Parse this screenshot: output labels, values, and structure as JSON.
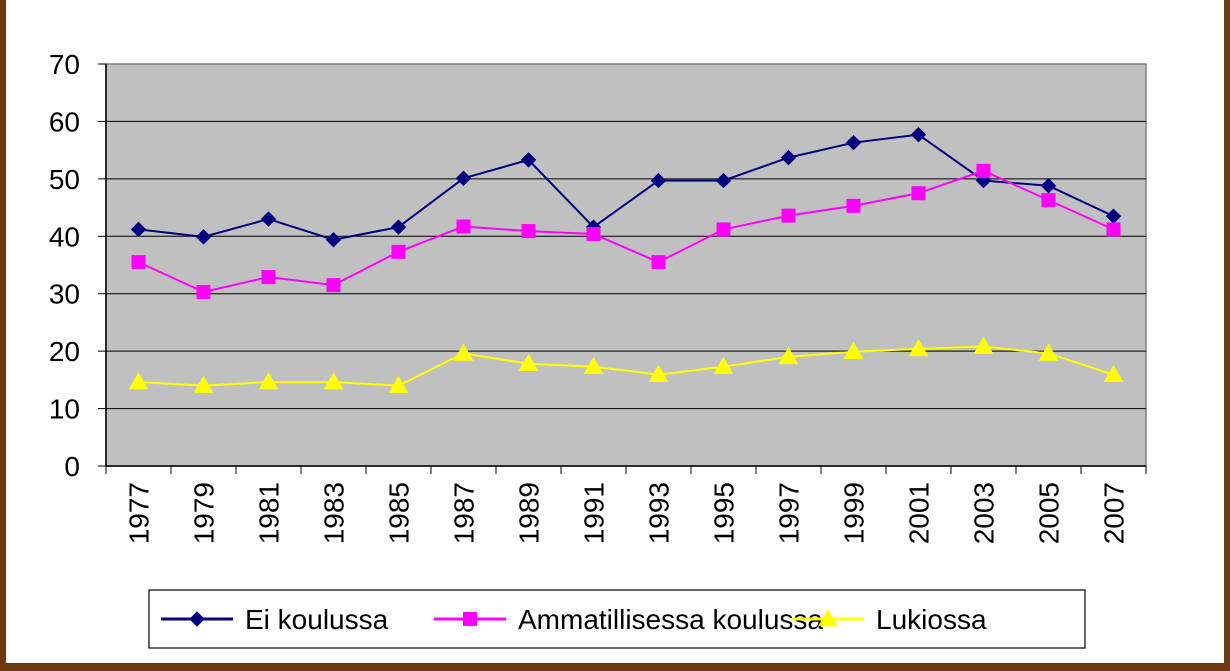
{
  "chart_data": {
    "type": "line",
    "categories": [
      "1977",
      "1979",
      "1981",
      "1983",
      "1985",
      "1987",
      "1989",
      "1991",
      "1993",
      "1995",
      "1997",
      "1999",
      "2001",
      "2003",
      "2005",
      "2007"
    ],
    "ylim": [
      0,
      70
    ],
    "yticks": [
      0,
      10,
      20,
      30,
      40,
      50,
      60,
      70
    ],
    "grid": true,
    "plot_background": "#c0c0c0",
    "legend_position": "bottom",
    "series": [
      {
        "name": "Ei koulussa",
        "color": "#000080",
        "marker": "diamond",
        "values": [
          41.2,
          39.9,
          43.0,
          39.4,
          41.6,
          50.1,
          53.3,
          41.6,
          49.7,
          49.7,
          53.7,
          56.3,
          57.7,
          49.7,
          48.8,
          43.5
        ]
      },
      {
        "name": "Ammatillisessa koulussa",
        "color": "#ff00ff",
        "marker": "square",
        "values": [
          35.5,
          30.3,
          32.9,
          31.5,
          37.3,
          41.7,
          40.9,
          40.4,
          35.5,
          41.2,
          43.6,
          45.3,
          47.5,
          51.4,
          46.3,
          41.2
        ]
      },
      {
        "name": "Lukiossa",
        "color": "#ffff00",
        "marker": "triangle",
        "values": [
          14.6,
          14.0,
          14.6,
          14.6,
          14.0,
          19.6,
          17.8,
          17.3,
          15.9,
          17.3,
          19.0,
          19.9,
          20.4,
          20.8,
          19.6,
          15.9
        ]
      }
    ]
  }
}
